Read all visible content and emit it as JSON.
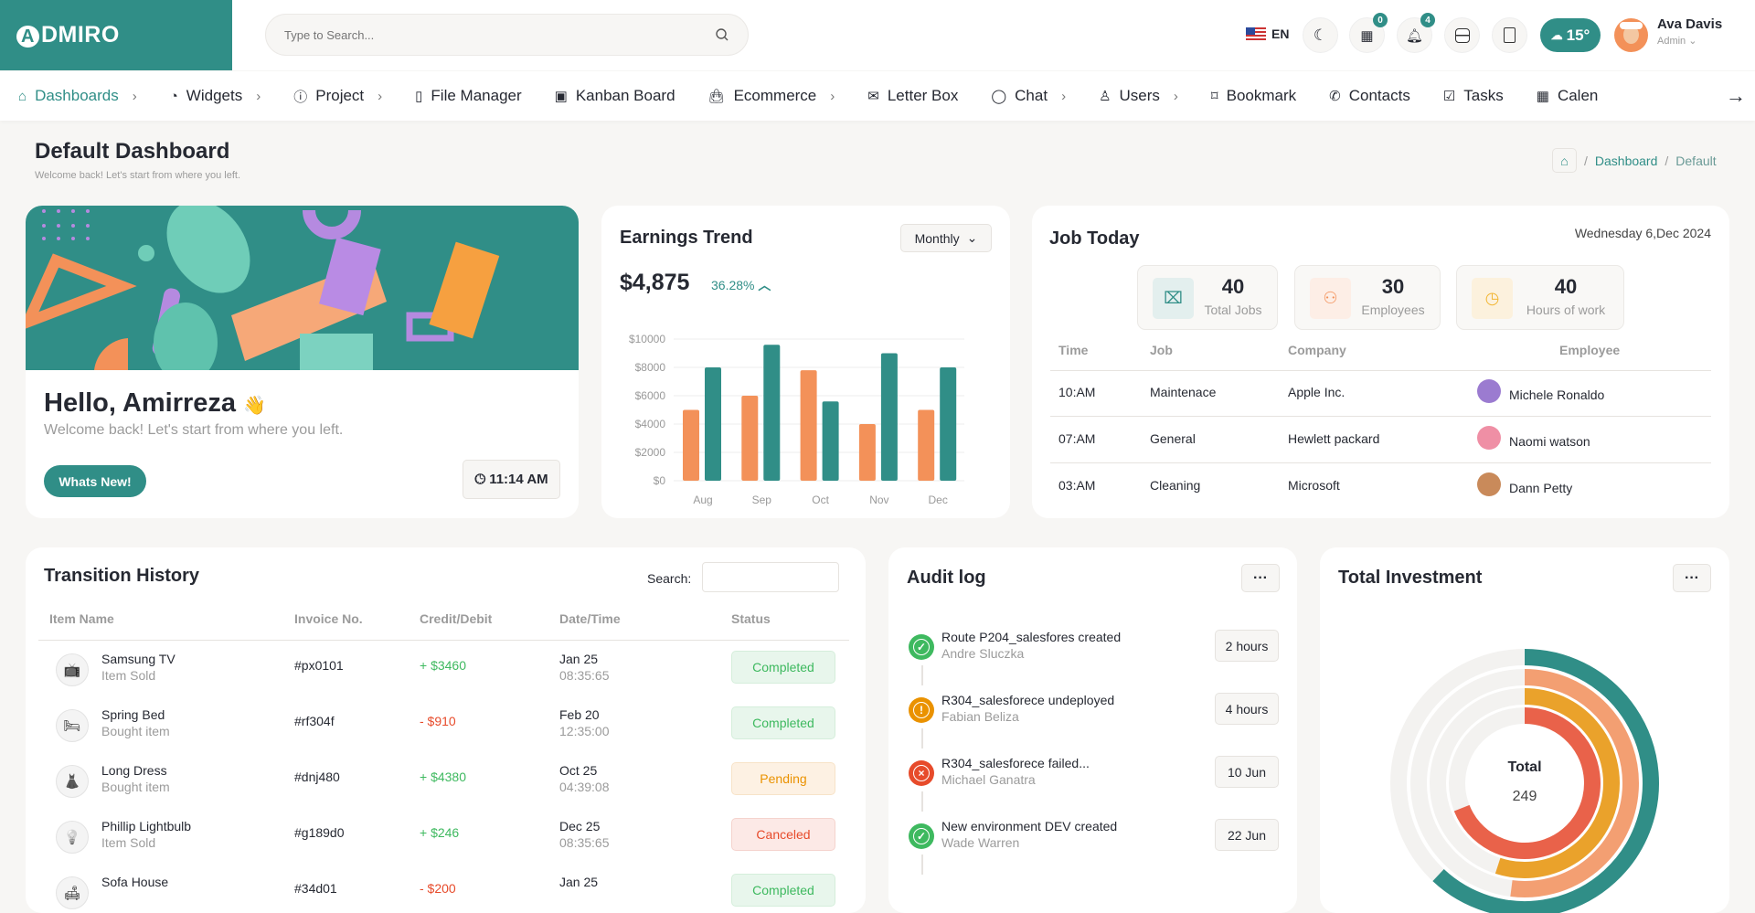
{
  "header": {
    "logo": "ADMIRO",
    "search_placeholder": "Type to Search...",
    "language": "EN",
    "cart_badge": "0",
    "notif_badge": "4",
    "weather": "15°",
    "user_name": "Ava Davis",
    "user_role": "Admin"
  },
  "nav": [
    {
      "label": "Dashboards",
      "icon": "home-icon",
      "chevron": true,
      "active": true
    },
    {
      "label": "Widgets",
      "icon": "pie-chart-icon",
      "chevron": true
    },
    {
      "label": "Project",
      "icon": "info-icon",
      "chevron": true
    },
    {
      "label": "File Manager",
      "icon": "file-icon"
    },
    {
      "label": "Kanban Board",
      "icon": "wallet-icon"
    },
    {
      "label": "Ecommerce",
      "icon": "bag-icon",
      "chevron": true
    },
    {
      "label": "Letter Box",
      "icon": "mail-icon"
    },
    {
      "label": "Chat",
      "icon": "chat-icon",
      "chevron": true
    },
    {
      "label": "Users",
      "icon": "user-icon",
      "chevron": true
    },
    {
      "label": "Bookmark",
      "icon": "bookmark-icon"
    },
    {
      "label": "Contacts",
      "icon": "phone-icon"
    },
    {
      "label": "Tasks",
      "icon": "check-square-icon"
    },
    {
      "label": "Calen",
      "icon": "calendar-icon"
    }
  ],
  "page": {
    "title": "Default Dashboard",
    "subtitle": "Welcome back! Let's start from where you left.",
    "breadcrumb": [
      "Dashboard",
      "Default"
    ]
  },
  "welcome": {
    "greeting": "Hello, Amirreza",
    "wave": "👋",
    "text": "Welcome back! Let's start from where you left.",
    "button": "Whats New!",
    "time": "11:14 AM"
  },
  "earnings": {
    "title": "Earnings Trend",
    "period": "Monthly",
    "amount": "$4,875",
    "change": "36.28%"
  },
  "chart_data": {
    "type": "bar",
    "categories": [
      "Aug",
      "Sep",
      "Oct",
      "Nov",
      "Dec"
    ],
    "series": [
      {
        "values": [
          5000,
          6000,
          7800,
          4000,
          5000
        ],
        "color": "#f39159"
      },
      {
        "values": [
          8000,
          9600,
          5600,
          9000,
          8000
        ],
        "color": "#308e87"
      }
    ],
    "yticks": [
      "$0",
      "$2000",
      "$4000",
      "$6000",
      "$8000",
      "$10000"
    ],
    "ylim": [
      0,
      10000
    ],
    "grid": true
  },
  "job": {
    "title": "Job Today",
    "date": "Wednesday 6,Dec 2024",
    "stats": [
      {
        "value": "40",
        "label": "Total Jobs",
        "color": "#308e87",
        "bg": "#e3efee",
        "icon": "briefcase-icon"
      },
      {
        "value": "30",
        "label": "Employees",
        "color": "#f39159",
        "bg": "#fdeee6",
        "icon": "users-icon"
      },
      {
        "value": "40",
        "label": "Hours of work",
        "color": "#f2b634",
        "bg": "#fcf1dd",
        "icon": "clock-icon"
      }
    ],
    "columns": [
      "Time",
      "Job",
      "Company",
      "Employee"
    ],
    "rows": [
      {
        "time": "10:AM",
        "job": "Maintenace",
        "company": "Apple Inc.",
        "employee": "Michele Ronaldo",
        "avatar": "#9b7bd0"
      },
      {
        "time": "07:AM",
        "job": "General",
        "company": "Hewlett packard",
        "employee": "Naomi watson",
        "avatar": "#ef8fa5"
      },
      {
        "time": "03:AM",
        "job": "Cleaning",
        "company": "Microsoft",
        "employee": "Dann Petty",
        "avatar": "#c98a5a"
      }
    ]
  },
  "transactions": {
    "title": "Transition History",
    "search_label": "Search:",
    "columns": [
      "Item Name",
      "Invoice No.",
      "Credit/Debit",
      "Date/Time",
      "Status"
    ],
    "rows": [
      {
        "icon": "tv-icon",
        "glyph": "📺",
        "name": "Samsung TV",
        "sub": "Item Sold",
        "invoice": "#px0101",
        "amount": "+ $3460",
        "positive": true,
        "date": "Jan 25",
        "time": "08:35:65",
        "status": "Completed"
      },
      {
        "icon": "bed-icon",
        "glyph": "🛏",
        "name": "Spring Bed",
        "sub": "Bought item",
        "invoice": "#rf304f",
        "amount": "- $910",
        "positive": false,
        "date": "Feb 20",
        "time": "12:35:00",
        "status": "Completed"
      },
      {
        "icon": "dress-icon",
        "glyph": "👗",
        "name": "Long Dress",
        "sub": "Bought item",
        "invoice": "#dnj480",
        "amount": "+ $4380",
        "positive": true,
        "date": "Oct 25",
        "time": "04:39:08",
        "status": "Pending"
      },
      {
        "icon": "lightbulb-icon",
        "glyph": "💡",
        "name": "Phillip Lightbulb",
        "sub": "Item Sold",
        "invoice": "#g189d0",
        "amount": "+ $246",
        "positive": true,
        "date": "Dec 25",
        "time": "08:35:65",
        "status": "Canceled"
      },
      {
        "icon": "sofa-icon",
        "glyph": "🛋",
        "name": "Sofa House",
        "sub": "",
        "invoice": "#34d01",
        "amount": "- $200",
        "positive": false,
        "date": "Jan 25",
        "time": "",
        "status": "Completed"
      }
    ]
  },
  "audit": {
    "title": "Audit log",
    "items": [
      {
        "title": "Route P204_salesfores created",
        "user": "Andre Sluczka",
        "time": "2 hours",
        "status": "success"
      },
      {
        "title": "R304_salesforece undeployed",
        "user": "Fabian Beliza",
        "time": "4 hours",
        "status": "warning"
      },
      {
        "title": "R304_salesforece failed...",
        "user": "Michael Ganatra",
        "time": "10 Jun",
        "status": "error"
      },
      {
        "title": "New environment DEV created",
        "user": "Wade Warren",
        "time": "22 Jun",
        "status": "success"
      }
    ]
  },
  "investment": {
    "title": "Total Investment",
    "center_label": "Total",
    "center_value": "249",
    "rings": [
      {
        "color": "#308e87",
        "fraction": 0.62
      },
      {
        "color": "#f39f72",
        "fraction": 0.52
      },
      {
        "color": "#eaa22b",
        "fraction": 0.55
      },
      {
        "color": "#e9624a",
        "fraction": 0.69
      }
    ]
  },
  "colors": {
    "primary": "#308e87",
    "secondary": "#f39159",
    "success": "#3eb95f",
    "warning": "#ea9200",
    "danger": "#e74b2b"
  }
}
